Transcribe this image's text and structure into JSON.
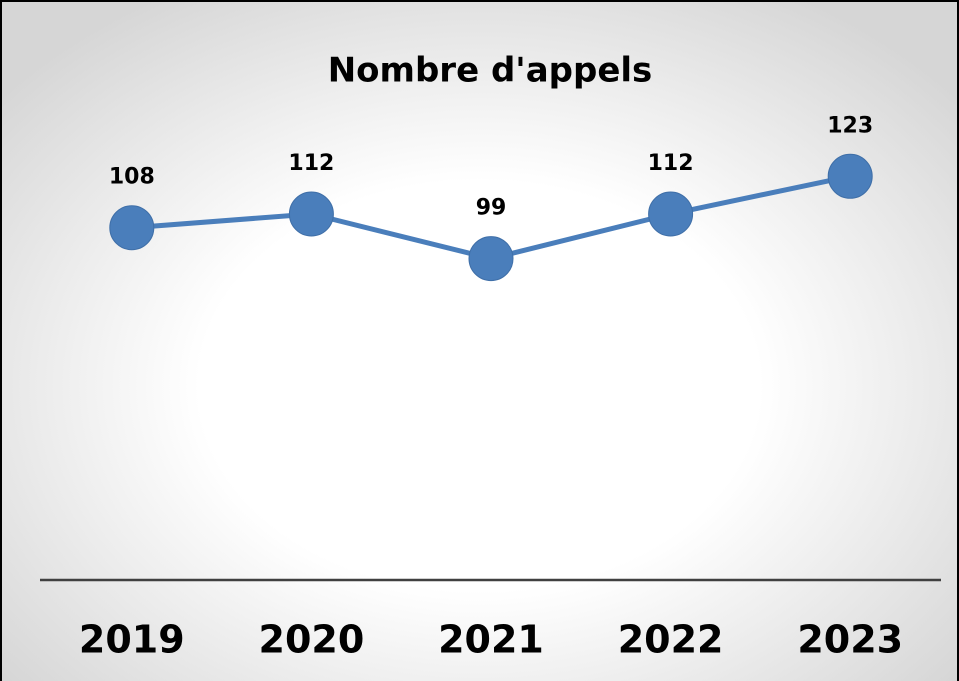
{
  "chart_data": {
    "type": "line",
    "title": "Nombre d'appels",
    "categories": [
      "2019",
      "2020",
      "2021",
      "2022",
      "2023"
    ],
    "series": [
      {
        "color": "#4a7ebb",
        "values": [
          108,
          112,
          99,
          112,
          123
        ]
      }
    ],
    "ylim": [
      0,
      140
    ],
    "grid": false
  }
}
